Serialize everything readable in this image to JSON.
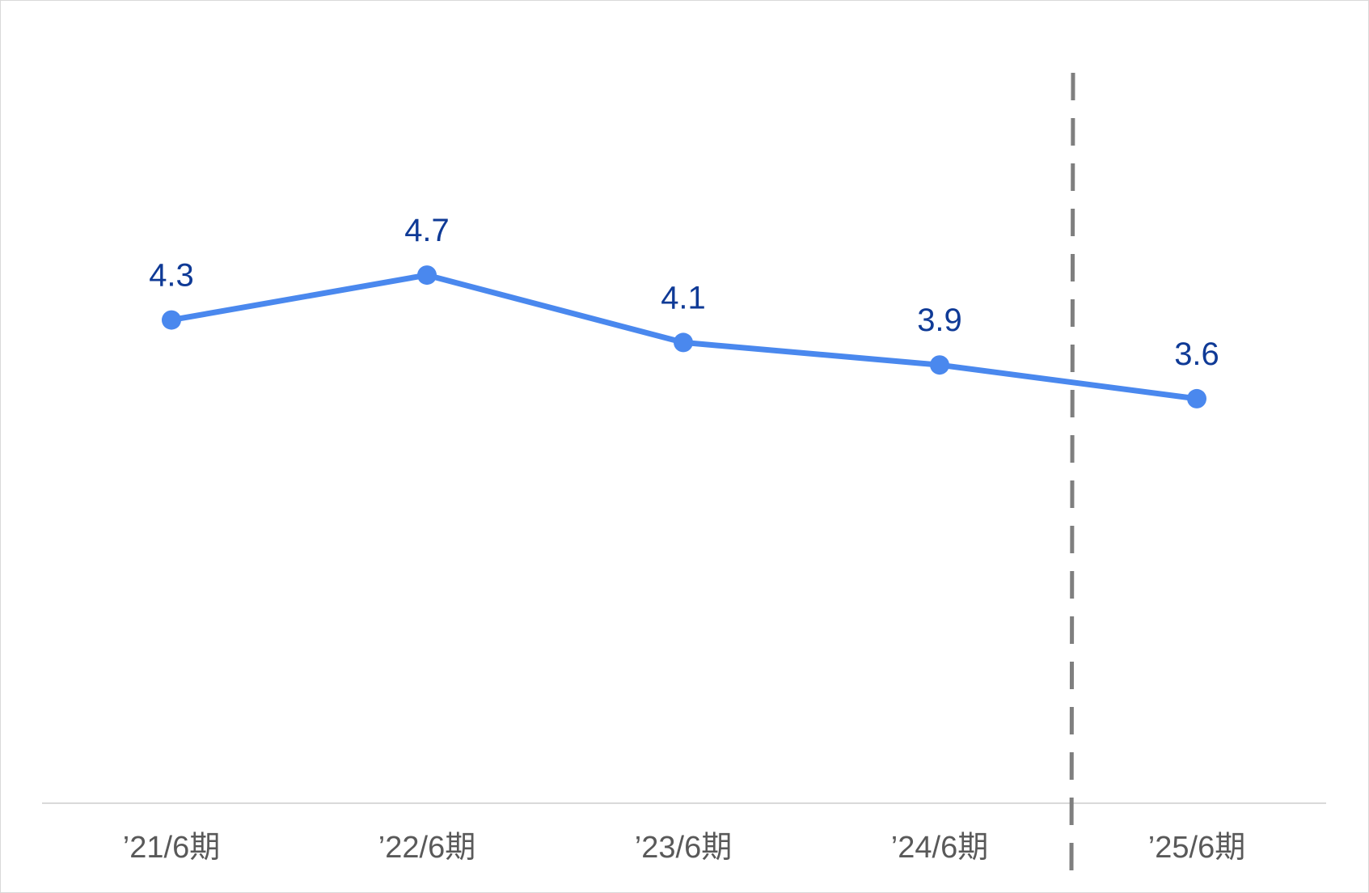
{
  "chart_data": {
    "type": "line",
    "title": "",
    "xlabel": "",
    "ylabel": "",
    "categories": [
      "’21/6期",
      "’22/6期",
      "’23/6期",
      "’24/6期",
      "’25/6期"
    ],
    "series": [
      {
        "values": [
          4.3,
          4.7,
          4.1,
          3.9,
          3.6
        ]
      }
    ],
    "data_labels": [
      "4.3",
      "4.7",
      "4.1",
      "3.9",
      "3.6"
    ],
    "ylim": [
      0,
      6.5
    ],
    "grid": false,
    "y_axis_visible": false,
    "divider": {
      "style": "dashed",
      "between": [
        "’24/6期",
        "’25/6期"
      ]
    },
    "colors": {
      "line": "#4a88ee",
      "data_label": "#0f3a96",
      "tick_label": "#595959",
      "axis": "#d9d9d9",
      "divider": "#7f7f7f"
    }
  }
}
